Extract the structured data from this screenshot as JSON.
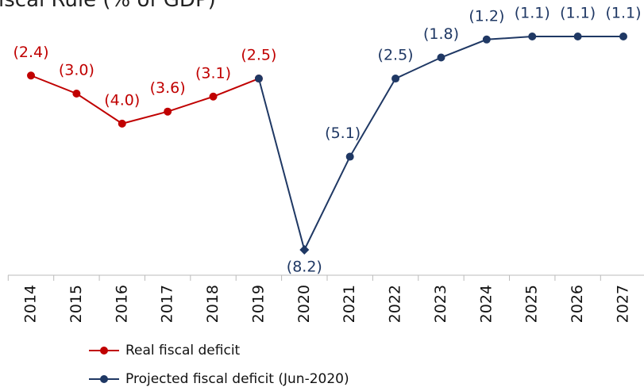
{
  "chart_data": {
    "type": "line",
    "title": "iscal Rule (% of GDP)",
    "categories": [
      "2014",
      "2015",
      "2016",
      "2017",
      "2018",
      "2019",
      "2020",
      "2021",
      "2022",
      "2023",
      "2024",
      "2025",
      "2026",
      "2027"
    ],
    "series": [
      {
        "name": "Real fiscal deficit",
        "color": "#c00000",
        "values": [
          -2.4,
          -3.0,
          -4.0,
          -3.6,
          -3.1,
          -2.5,
          null,
          null,
          null,
          null,
          null,
          null,
          null,
          null
        ],
        "value_labels": [
          "(2.4)",
          "(3.0)",
          "(4.0)",
          "(3.6)",
          "(3.1)",
          "(2.5)",
          null,
          null,
          null,
          null,
          null,
          null,
          null,
          null
        ]
      },
      {
        "name": "Projected fiscal deficit (Jun-2020)",
        "color": "#1f3864",
        "values": [
          null,
          null,
          null,
          null,
          null,
          -2.5,
          -8.2,
          -5.1,
          -2.5,
          -1.8,
          -1.2,
          -1.1,
          -1.1,
          -1.1
        ],
        "value_labels": [
          null,
          null,
          null,
          null,
          null,
          null,
          "(8.2)",
          "(5.1)",
          "(2.5)",
          "(1.8)",
          "(1.2)",
          "(1.1)",
          "(1.1)",
          "(1.1)"
        ]
      }
    ],
    "legend": "bottom"
  }
}
